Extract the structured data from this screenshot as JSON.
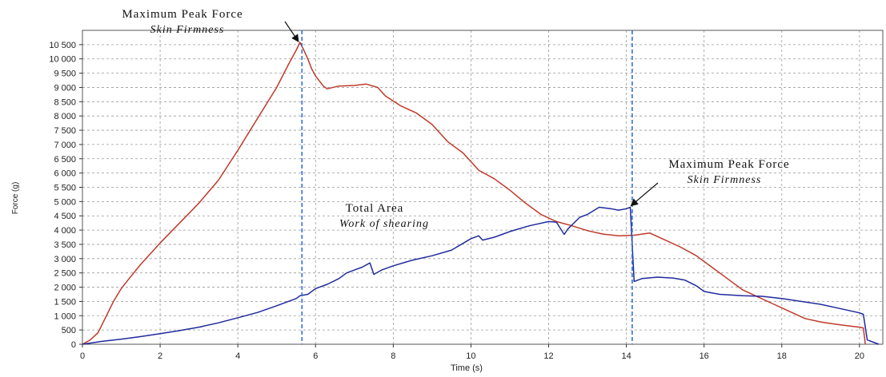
{
  "chart_data": {
    "type": "line",
    "xlabel": "Time (s)",
    "ylabel": "Force (g)",
    "xlim": [
      0,
      20.6
    ],
    "ylim": [
      0,
      11000
    ],
    "x_ticks": [
      0,
      2,
      4,
      6,
      8,
      10,
      12,
      14,
      16,
      18,
      20
    ],
    "y_ticks": [
      0,
      500,
      1000,
      1500,
      2000,
      2500,
      3000,
      3500,
      4000,
      4500,
      5000,
      5500,
      6000,
      6500,
      7000,
      7500,
      8000,
      8500,
      9000,
      9500,
      10000,
      10500
    ],
    "y_tick_labels": [
      "0",
      "500",
      "1 000",
      "1 500",
      "2 000",
      "2 500",
      "3 000",
      "3 500",
      "4 000",
      "4 500",
      "5 000",
      "5 500",
      "6 000",
      "6 500",
      "7 000",
      "7 500",
      "8 000",
      "8 500",
      "9 000",
      "9 500",
      "10 000",
      "10 500"
    ],
    "grid": true,
    "series": [
      {
        "color": "#c0392b",
        "points": [
          [
            0,
            0
          ],
          [
            0.2,
            150
          ],
          [
            0.4,
            400
          ],
          [
            0.6,
            950
          ],
          [
            0.8,
            1500
          ],
          [
            1.0,
            1950
          ],
          [
            1.2,
            2300
          ],
          [
            1.5,
            2800
          ],
          [
            2.0,
            3550
          ],
          [
            2.5,
            4250
          ],
          [
            3.0,
            4950
          ],
          [
            3.5,
            5750
          ],
          [
            4.0,
            6800
          ],
          [
            4.5,
            7900
          ],
          [
            5.0,
            9000
          ],
          [
            5.3,
            9800
          ],
          [
            5.5,
            10300
          ],
          [
            5.6,
            10580
          ],
          [
            5.7,
            10300
          ],
          [
            5.8,
            10000
          ],
          [
            5.9,
            9650
          ],
          [
            6.0,
            9400
          ],
          [
            6.2,
            9050
          ],
          [
            6.3,
            8950
          ],
          [
            6.6,
            9050
          ],
          [
            7.0,
            9070
          ],
          [
            7.3,
            9120
          ],
          [
            7.6,
            9000
          ],
          [
            7.8,
            8700
          ],
          [
            8.2,
            8350
          ],
          [
            8.6,
            8100
          ],
          [
            9.0,
            7700
          ],
          [
            9.4,
            7100
          ],
          [
            9.8,
            6700
          ],
          [
            10.2,
            6100
          ],
          [
            10.6,
            5800
          ],
          [
            11.0,
            5400
          ],
          [
            11.4,
            4950
          ],
          [
            11.8,
            4550
          ],
          [
            12.2,
            4300
          ],
          [
            12.6,
            4150
          ],
          [
            13.0,
            3980
          ],
          [
            13.4,
            3860
          ],
          [
            13.8,
            3800
          ],
          [
            14.2,
            3820
          ],
          [
            14.6,
            3900
          ],
          [
            15.0,
            3650
          ],
          [
            15.4,
            3400
          ],
          [
            15.8,
            3100
          ],
          [
            16.2,
            2700
          ],
          [
            16.6,
            2300
          ],
          [
            17.0,
            1900
          ],
          [
            17.4,
            1650
          ],
          [
            17.8,
            1400
          ],
          [
            18.2,
            1150
          ],
          [
            18.6,
            900
          ],
          [
            19.0,
            780
          ],
          [
            19.4,
            700
          ],
          [
            19.8,
            630
          ],
          [
            20.0,
            600
          ],
          [
            20.1,
            570
          ],
          [
            20.15,
            0
          ]
        ]
      },
      {
        "color": "#1f2a9c",
        "points": [
          [
            0,
            0
          ],
          [
            0.5,
            100
          ],
          [
            1.0,
            180
          ],
          [
            1.5,
            270
          ],
          [
            2.0,
            370
          ],
          [
            2.5,
            480
          ],
          [
            3.0,
            600
          ],
          [
            3.5,
            750
          ],
          [
            4.0,
            930
          ],
          [
            4.5,
            1110
          ],
          [
            5.0,
            1350
          ],
          [
            5.5,
            1600
          ],
          [
            5.6,
            1700
          ],
          [
            5.8,
            1750
          ],
          [
            6.0,
            1950
          ],
          [
            6.3,
            2100
          ],
          [
            6.6,
            2300
          ],
          [
            6.8,
            2500
          ],
          [
            7.0,
            2600
          ],
          [
            7.2,
            2700
          ],
          [
            7.4,
            2850
          ],
          [
            7.5,
            2450
          ],
          [
            7.7,
            2600
          ],
          [
            8.0,
            2750
          ],
          [
            8.5,
            2950
          ],
          [
            9.0,
            3100
          ],
          [
            9.5,
            3300
          ],
          [
            10.0,
            3700
          ],
          [
            10.2,
            3800
          ],
          [
            10.3,
            3650
          ],
          [
            10.6,
            3750
          ],
          [
            11.0,
            3950
          ],
          [
            11.5,
            4150
          ],
          [
            12.0,
            4300
          ],
          [
            12.2,
            4280
          ],
          [
            12.4,
            3850
          ],
          [
            12.5,
            4050
          ],
          [
            12.8,
            4450
          ],
          [
            13.0,
            4550
          ],
          [
            13.3,
            4800
          ],
          [
            13.6,
            4750
          ],
          [
            13.8,
            4700
          ],
          [
            14.0,
            4750
          ],
          [
            14.1,
            4800
          ],
          [
            14.2,
            2200
          ],
          [
            14.4,
            2300
          ],
          [
            14.8,
            2350
          ],
          [
            15.2,
            2320
          ],
          [
            15.5,
            2250
          ],
          [
            15.8,
            2050
          ],
          [
            16.0,
            1850
          ],
          [
            16.4,
            1750
          ],
          [
            17.0,
            1700
          ],
          [
            17.5,
            1680
          ],
          [
            18.0,
            1600
          ],
          [
            18.5,
            1500
          ],
          [
            19.0,
            1400
          ],
          [
            19.5,
            1250
          ],
          [
            20.0,
            1100
          ],
          [
            20.1,
            1050
          ],
          [
            20.2,
            150
          ],
          [
            20.5,
            0
          ]
        ]
      }
    ],
    "markers": [
      {
        "x": 5.65,
        "color": "#2e6fe0"
      },
      {
        "x": 14.15,
        "color": "#2e6fe0"
      }
    ],
    "annotations": [
      {
        "line1": "Maximum Peak Force",
        "line2": "Skin Firmness",
        "x": 5.6,
        "y": 10580
      },
      {
        "line1": "Maximum Peak Force",
        "line2": "Skin Firmness",
        "x": 14.1,
        "y": 4800
      },
      {
        "line1": "Total Area",
        "line2": "Work of shearing"
      }
    ]
  }
}
